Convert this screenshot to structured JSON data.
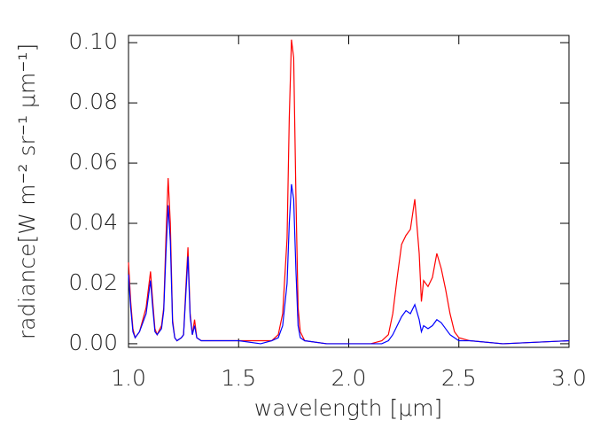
{
  "chart_data": {
    "type": "line",
    "x_label": "wavelength [μm]",
    "y_label": "radiance[W m⁻² sr⁻¹ μm⁻¹]",
    "x": [
      1.0,
      1.01,
      1.02,
      1.03,
      1.05,
      1.08,
      1.1,
      1.11,
      1.12,
      1.13,
      1.15,
      1.16,
      1.17,
      1.18,
      1.19,
      1.2,
      1.21,
      1.22,
      1.24,
      1.25,
      1.26,
      1.27,
      1.28,
      1.29,
      1.3,
      1.31,
      1.33,
      1.4,
      1.5,
      1.6,
      1.65,
      1.68,
      1.7,
      1.72,
      1.73,
      1.74,
      1.75,
      1.76,
      1.77,
      1.78,
      1.8,
      1.9,
      2.0,
      2.1,
      2.15,
      2.18,
      2.2,
      2.22,
      2.24,
      2.26,
      2.28,
      2.3,
      2.32,
      2.33,
      2.34,
      2.36,
      2.38,
      2.4,
      2.42,
      2.44,
      2.46,
      2.48,
      2.5,
      2.55,
      2.7,
      3.0
    ],
    "series": [
      {
        "color": "#ff0000",
        "values": [
          0.027,
          0.014,
          0.005,
          0.002,
          0.004,
          0.012,
          0.024,
          0.014,
          0.005,
          0.003,
          0.006,
          0.012,
          0.035,
          0.055,
          0.04,
          0.008,
          0.002,
          0.001,
          0.002,
          0.003,
          0.018,
          0.032,
          0.01,
          0.003,
          0.008,
          0.002,
          0.001,
          0.001,
          0.001,
          0.001,
          0.001,
          0.003,
          0.01,
          0.035,
          0.075,
          0.101,
          0.095,
          0.05,
          0.012,
          0.004,
          0.001,
          0.0,
          0.0,
          0.0,
          0.001,
          0.003,
          0.01,
          0.022,
          0.033,
          0.036,
          0.038,
          0.048,
          0.03,
          0.014,
          0.021,
          0.019,
          0.022,
          0.03,
          0.025,
          0.018,
          0.01,
          0.004,
          0.002,
          0.001,
          0.0,
          0.001
        ]
      },
      {
        "color": "#0000ff",
        "values": [
          0.023,
          0.012,
          0.004,
          0.002,
          0.004,
          0.01,
          0.021,
          0.012,
          0.004,
          0.003,
          0.005,
          0.011,
          0.03,
          0.046,
          0.034,
          0.007,
          0.002,
          0.001,
          0.002,
          0.003,
          0.016,
          0.029,
          0.009,
          0.003,
          0.006,
          0.002,
          0.001,
          0.001,
          0.001,
          0.0,
          0.001,
          0.002,
          0.006,
          0.02,
          0.04,
          0.053,
          0.048,
          0.025,
          0.006,
          0.002,
          0.001,
          0.0,
          0.0,
          0.0,
          0.0,
          0.001,
          0.003,
          0.006,
          0.009,
          0.011,
          0.01,
          0.013,
          0.008,
          0.004,
          0.006,
          0.005,
          0.006,
          0.008,
          0.007,
          0.005,
          0.003,
          0.002,
          0.001,
          0.001,
          0.0,
          0.001
        ]
      }
    ],
    "xlim": [
      1.0,
      3.0
    ],
    "ylim": [
      -0.0012,
      0.1024
    ],
    "xticks": [
      {
        "value": 1.0,
        "label": "1.0"
      },
      {
        "value": 1.5,
        "label": "1.5"
      },
      {
        "value": 2.0,
        "label": "2.0"
      },
      {
        "value": 2.5,
        "label": "2.5"
      },
      {
        "value": 3.0,
        "label": "3.0"
      }
    ],
    "yticks": [
      {
        "value": 0,
        "label": "0.00"
      },
      {
        "value": 0.02,
        "label": "0.02"
      },
      {
        "value": 0.04,
        "label": "0.04"
      },
      {
        "value": 0.06,
        "label": "0.06"
      },
      {
        "value": 0.08,
        "label": "0.08"
      },
      {
        "value": 0.1,
        "label": "0.10"
      }
    ]
  }
}
